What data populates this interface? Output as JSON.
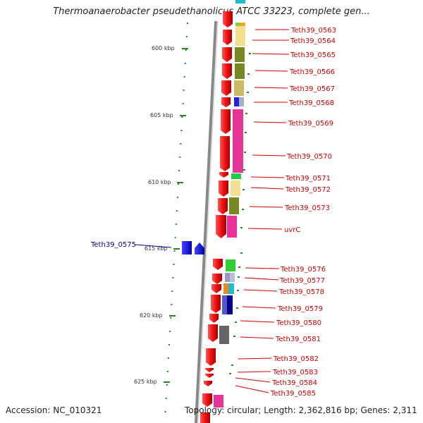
{
  "title": "Thermoanaerobacter pseudethanolicus ATCC 33223, complete gen...",
  "accession": "Accession: NC_010321",
  "topology": "Topology: circular; Length: 2,362,816 bp; Genes: 2,311",
  "scale_labels": [
    "600 kbp",
    "605 kbp",
    "610 kbp",
    "615 kbp",
    "620 kbp",
    "625 kbp"
  ],
  "colors": {
    "gene_arrow": "#ee1111",
    "gene_label": "#cc0000",
    "blue_gene": "#1111dd",
    "tick": "#228822",
    "backbone": "#999999"
  },
  "genes": [
    {
      "label": "Teth39_0563"
    },
    {
      "label": "Teth39_0564"
    },
    {
      "label": "Teth39_0565"
    },
    {
      "label": "Teth39_0566"
    },
    {
      "label": "Teth39_0567"
    },
    {
      "label": "Teth39_0568"
    },
    {
      "label": "Teth39_0569"
    },
    {
      "label": "Teth39_0570"
    },
    {
      "label": "Teth39_0571"
    },
    {
      "label": "Teth39_0572"
    },
    {
      "label": "Teth39_0573"
    },
    {
      "label": "uvrC"
    },
    {
      "label": "Teth39_0575"
    },
    {
      "label": "Teth39_0576"
    },
    {
      "label": "Teth39_0577"
    },
    {
      "label": "Teth39_0578"
    },
    {
      "label": "Teth39_0579"
    },
    {
      "label": "Teth39_0580"
    },
    {
      "label": "Teth39_0581"
    },
    {
      "label": "Teth39_0582"
    },
    {
      "label": "Teth39_0583"
    },
    {
      "label": "Teth39_0584"
    },
    {
      "label": "Teth39_0585"
    }
  ]
}
